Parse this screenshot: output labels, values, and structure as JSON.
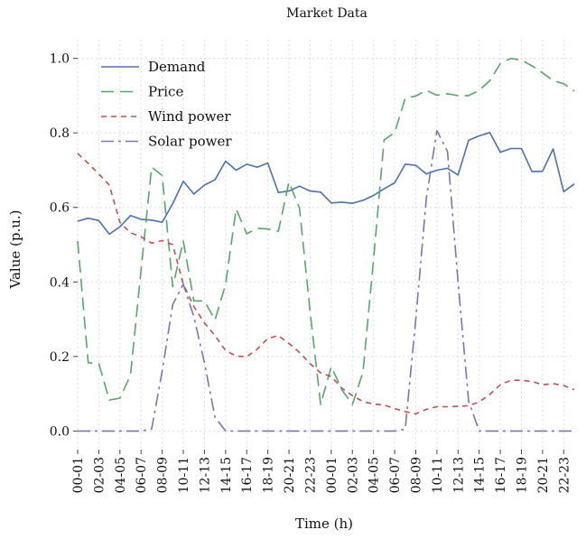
{
  "chart_data": {
    "type": "line",
    "title": "Market Data",
    "xlabel": "Time (h)",
    "ylabel": "Value (p.u.)",
    "ylim": [
      -0.05,
      1.05
    ],
    "yticks": [
      0.0,
      0.2,
      0.4,
      0.6,
      0.8,
      1.0
    ],
    "ytick_labels": [
      "0.0",
      "0.2",
      "0.4",
      "0.6",
      "0.8",
      "1.0"
    ],
    "xtick_labels": [
      "00-01",
      "02-03",
      "04-05",
      "06-07",
      "08-09",
      "10-11",
      "12-13",
      "14-15",
      "16-17",
      "18-19",
      "20-21",
      "22-23",
      "00-01",
      "02-03",
      "04-05",
      "06-07",
      "08-09",
      "10-11",
      "12-13",
      "14-15",
      "16-17",
      "18-19",
      "20-21",
      "22-23"
    ],
    "x": [
      0,
      1,
      2,
      3,
      4,
      5,
      6,
      7,
      8,
      9,
      10,
      11,
      12,
      13,
      14,
      15,
      16,
      17,
      18,
      19,
      20,
      21,
      22,
      23,
      24,
      25,
      26,
      27,
      28,
      29,
      30,
      31,
      32,
      33,
      34,
      35,
      36,
      37,
      38,
      39,
      40,
      41,
      42,
      43,
      44,
      45,
      46,
      47
    ],
    "grid": true,
    "legend_position": "top-left",
    "series": [
      {
        "name": "Demand",
        "color": "#4c72b0",
        "dash": "",
        "values": [
          0.563,
          0.571,
          0.565,
          0.528,
          0.548,
          0.578,
          0.568,
          0.566,
          0.56,
          0.61,
          0.67,
          0.636,
          0.66,
          0.674,
          0.724,
          0.7,
          0.716,
          0.708,
          0.719,
          0.64,
          0.644,
          0.657,
          0.644,
          0.641,
          0.612,
          0.614,
          0.611,
          0.619,
          0.632,
          0.65,
          0.666,
          0.716,
          0.713,
          0.69,
          0.7,
          0.705,
          0.687,
          0.78,
          0.792,
          0.801,
          0.748,
          0.758,
          0.758,
          0.696,
          0.697,
          0.757,
          0.642,
          0.663
        ]
      },
      {
        "name": "Price",
        "color": "#55a868",
        "dash": "14 7",
        "values": [
          0.51,
          0.183,
          0.181,
          0.083,
          0.088,
          0.15,
          0.431,
          0.708,
          0.686,
          0.387,
          0.51,
          0.349,
          0.349,
          0.298,
          0.393,
          0.596,
          0.529,
          0.544,
          0.542,
          0.536,
          0.668,
          0.598,
          0.321,
          0.071,
          0.173,
          0.111,
          0.071,
          0.158,
          0.46,
          0.781,
          0.801,
          0.893,
          0.899,
          0.914,
          0.901,
          0.905,
          0.9,
          0.9,
          0.914,
          0.94,
          0.986,
          1.0,
          0.995,
          0.98,
          0.961,
          0.94,
          0.932,
          0.912
        ]
      },
      {
        "name": "Wind power",
        "color": "#c44e52",
        "dash": "6 5",
        "values": [
          0.745,
          0.718,
          0.69,
          0.66,
          0.56,
          0.532,
          0.521,
          0.504,
          0.511,
          0.5,
          0.394,
          0.334,
          0.29,
          0.256,
          0.216,
          0.201,
          0.199,
          0.22,
          0.248,
          0.256,
          0.235,
          0.211,
          0.181,
          0.156,
          0.146,
          0.115,
          0.095,
          0.079,
          0.072,
          0.07,
          0.06,
          0.052,
          0.046,
          0.058,
          0.065,
          0.065,
          0.066,
          0.068,
          0.078,
          0.098,
          0.124,
          0.136,
          0.136,
          0.133,
          0.124,
          0.127,
          0.122,
          0.111
        ]
      },
      {
        "name": "Solar power",
        "color": "#8172b2",
        "dash": "14 5 3 5",
        "values": [
          0.0,
          0.0,
          0.0,
          0.0,
          0.0,
          0.0,
          0.0,
          0.005,
          0.16,
          0.339,
          0.394,
          0.307,
          0.183,
          0.037,
          0.0,
          0.0,
          0.0,
          0.0,
          0.0,
          0.0,
          0.0,
          0.0,
          0.0,
          0.0,
          0.0,
          0.0,
          0.0,
          0.0,
          0.0,
          0.0,
          0.0,
          0.005,
          0.3,
          0.625,
          0.806,
          0.75,
          0.4,
          0.08,
          0.0,
          0.0,
          0.0,
          0.0,
          0.0,
          0.0,
          0.0,
          0.0,
          0.0,
          0.0
        ]
      }
    ]
  }
}
